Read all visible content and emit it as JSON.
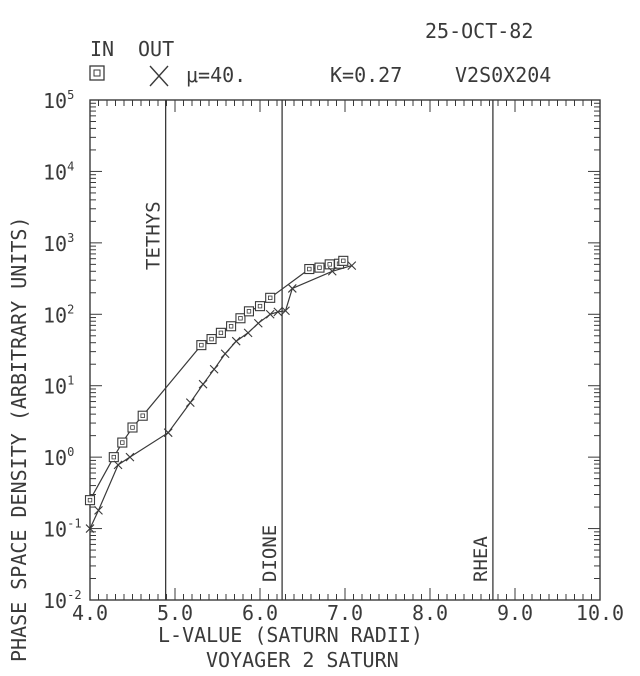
{
  "header": {
    "date": "25-OCT-82",
    "legend_in_label": "IN",
    "legend_out_label": "OUT",
    "mu_text": "μ=40.",
    "k_text": "K=0.27",
    "id_text": "V2S0X204"
  },
  "chart_data": {
    "type": "line",
    "ylabel": "PHASE SPACE DENSITY (ARBITRARY UNITS)",
    "xlabel": "L-VALUE (SATURN RADII)",
    "footer": "VOYAGER 2 SATURN",
    "xlim": [
      4.0,
      10.0
    ],
    "ylim": [
      0.01,
      100000
    ],
    "yscale": "log",
    "grid": false,
    "x_ticks": [
      "4.0",
      "5.0",
      "6.0",
      "7.0",
      "8.0",
      "9.0",
      "10.0"
    ],
    "y_ticks": [
      {
        "base": "10",
        "exp": "-2"
      },
      {
        "base": "10",
        "exp": "-1"
      },
      {
        "base": "10",
        "exp": "0"
      },
      {
        "base": "10",
        "exp": "1"
      },
      {
        "base": "10",
        "exp": "2"
      },
      {
        "base": "10",
        "exp": "3"
      },
      {
        "base": "10",
        "exp": "4"
      },
      {
        "base": "10",
        "exp": "5"
      }
    ],
    "moons": [
      {
        "name": "TETHYS",
        "x": 4.89
      },
      {
        "name": "DIONE",
        "x": 6.26
      },
      {
        "name": "RHEA",
        "x": 8.74
      }
    ],
    "series": [
      {
        "name": "IN",
        "marker": "square",
        "x": [
          4.0,
          4.28,
          4.38,
          4.5,
          4.62,
          5.31,
          5.43,
          5.54,
          5.66,
          5.77,
          5.87,
          6.0,
          6.12,
          6.58,
          6.7,
          6.82,
          6.93,
          6.98
        ],
        "y": [
          0.25,
          1.0,
          1.6,
          2.6,
          3.8,
          37,
          45,
          55,
          68,
          88,
          110,
          130,
          170,
          430,
          450,
          500,
          510,
          560
        ]
      },
      {
        "name": "OUT",
        "marker": "x",
        "x": [
          4.0,
          4.1,
          4.33,
          4.47,
          4.92,
          5.18,
          5.33,
          5.46,
          5.59,
          5.72,
          5.86,
          5.98,
          6.12,
          6.21,
          6.3,
          6.38,
          6.85,
          7.08
        ],
        "y": [
          0.1,
          0.18,
          0.78,
          1.0,
          2.2,
          5.8,
          10.5,
          17,
          28,
          42,
          55,
          75,
          100,
          108,
          112,
          230,
          400,
          480
        ]
      }
    ]
  }
}
